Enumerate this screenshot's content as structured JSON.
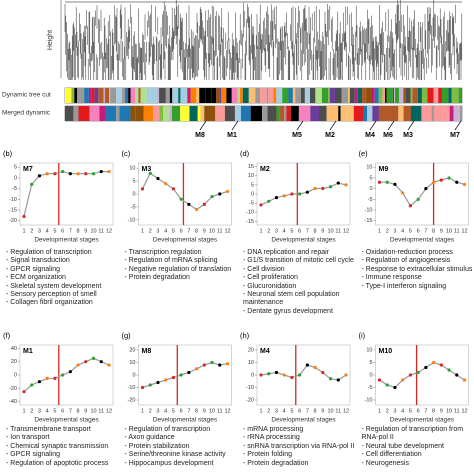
{
  "dendrogram": {
    "y_label": "Height",
    "rows": [
      "Dynamic tree cut",
      "Merged dynamic"
    ],
    "modules": [
      "M8",
      "M1",
      "M5",
      "M2",
      "M4",
      "M6",
      "M3",
      "M7"
    ]
  },
  "chart_data": [
    {
      "type": "line",
      "panel": "(b)",
      "title": "M7",
      "xlabel": "Developmental stages",
      "x": [
        1,
        2,
        3,
        4,
        5,
        6,
        7,
        8,
        9,
        10,
        11,
        12
      ],
      "values": [
        -18,
        -3,
        1,
        2,
        2,
        3,
        2,
        2,
        2,
        2,
        3,
        3
      ],
      "color": "#999999",
      "marker_x": 5.5,
      "ylim": [
        -22,
        7
      ],
      "yticks": [
        5,
        0,
        -5,
        -10,
        -15,
        -20
      ],
      "annotations": [
        "- Regulation of transcription",
        "- Signal transduction",
        "- GPCR signaling",
        "- ECM organization",
        "- Skeletal system development",
        "- Sensory perception of smell",
        "- Collagen fibril organization"
      ]
    },
    {
      "type": "line",
      "panel": "(c)",
      "title": "M3",
      "xlabel": "Developmental stages",
      "x": [
        1,
        2,
        3,
        4,
        5,
        6,
        7,
        8,
        9,
        10,
        11,
        12
      ],
      "values": [
        2,
        8,
        6,
        4,
        2,
        -2,
        -4,
        -6,
        -4,
        -1,
        0,
        1
      ],
      "color": "#999999",
      "marker_x": 6.3,
      "ylim": [
        -12,
        12
      ],
      "yticks": [
        10,
        5,
        0,
        -5,
        -10
      ],
      "annotations": [
        "- Transcription regulation",
        "- Regulation of mRNA splicing",
        "- Negative regulation of translation",
        "- Protein degradation"
      ]
    },
    {
      "type": "line",
      "panel": "(d)",
      "title": "M2",
      "xlabel": "Developmental stages",
      "x": [
        1,
        2,
        3,
        4,
        5,
        6,
        7,
        8,
        9,
        10,
        11,
        12
      ],
      "values": [
        -6,
        -4,
        -2,
        -1,
        0,
        0,
        1,
        3,
        3,
        4,
        6,
        5
      ],
      "color": "#999999",
      "marker_x": 5.7,
      "ylim": [
        -17,
        17
      ],
      "yticks": [
        15,
        10,
        5,
        0,
        -5,
        -10,
        -15
      ],
      "annotations": [
        "- DNA replication and repair",
        "- G1/S transition of mitotic cell cycle",
        "- Cell division",
        "- Cell proliferation",
        "- Glucuronidation",
        "- Neuronal stem cell population maintenance",
        "- Dentate gyrus development"
      ]
    },
    {
      "type": "line",
      "panel": "(e)",
      "title": "M9",
      "xlabel": "Developmental stages",
      "x": [
        1,
        2,
        3,
        4,
        5,
        6,
        7,
        8,
        9,
        10,
        11,
        12
      ],
      "values": [
        3,
        3,
        2,
        -2,
        -8,
        -5,
        0,
        3,
        4,
        5,
        3,
        2
      ],
      "color": "#999999",
      "marker_x": 8,
      "ylim": [
        -17,
        12
      ],
      "yticks": [
        10,
        5,
        0,
        -5,
        -10,
        -15
      ],
      "annotations": [
        "- Oxidation-reduction process",
        "- Regulation of angiogenesis",
        "- Response to extracellular stimulus",
        "- Immune response",
        "- Type-I interferon signaling"
      ]
    },
    {
      "type": "line",
      "panel": "(f)",
      "title": "M1",
      "xlabel": "Developmental stages",
      "x": [
        1,
        2,
        3,
        4,
        5,
        6,
        7,
        8,
        9,
        10,
        11,
        12
      ],
      "values": [
        -25,
        -15,
        -10,
        -5,
        -5,
        0,
        5,
        15,
        20,
        25,
        20,
        15
      ],
      "color": "#999999",
      "marker_x": 5.5,
      "ylim": [
        -45,
        45
      ],
      "yticks": [
        40,
        20,
        0,
        -20,
        -40
      ],
      "annotations": [
        "- Transmembrane transport",
        "- Ion transport",
        "- Chemical synaptic transmission",
        "- GPCR signaling",
        "- Regulation of apoptotic process"
      ]
    },
    {
      "type": "line",
      "panel": "(g)",
      "title": "M8",
      "xlabel": "Developmental stages",
      "x": [
        1,
        2,
        3,
        4,
        5,
        6,
        7,
        8,
        9,
        10,
        11,
        12
      ],
      "values": [
        -10,
        -8,
        -6,
        -4,
        -2,
        0,
        2,
        5,
        8,
        10,
        8,
        9
      ],
      "color": "#999999",
      "marker_x": 5.5,
      "ylim": [
        -24,
        24
      ],
      "yticks": [
        20,
        10,
        0,
        -10,
        -20
      ],
      "annotations": [
        "- Regulation of transcription",
        "- Axon guidance",
        "- Protein stabilization",
        "- Serine/threonine kinase activity",
        "- Hippocampus development"
      ]
    },
    {
      "type": "line",
      "panel": "(h)",
      "title": "M4",
      "xlabel": "Developmental stages",
      "x": [
        1,
        2,
        3,
        4,
        5,
        6,
        7,
        8,
        9,
        10,
        11,
        12
      ],
      "values": [
        0,
        1,
        2,
        0,
        -2,
        0,
        8,
        6,
        2,
        -3,
        -4,
        0
      ],
      "color": "#999999",
      "marker_x": 5.5,
      "ylim": [
        -24,
        24
      ],
      "yticks": [
        20,
        10,
        0,
        -10,
        -20
      ],
      "annotations": [
        "- mRNA processing",
        "- rRNA processing",
        "- snRNA transcription via RNA-pol II",
        "- Protein folding",
        "- Protein degradation"
      ]
    },
    {
      "type": "line",
      "panel": "(i)",
      "title": "M10",
      "xlabel": "Developmental stages",
      "x": [
        1,
        2,
        3,
        4,
        5,
        6,
        7,
        8,
        9,
        10,
        11,
        12
      ],
      "values": [
        -2,
        -4,
        -5,
        -2,
        0,
        1,
        3,
        5,
        4,
        2,
        0,
        -2
      ],
      "color": "#999999",
      "marker_x": 5.8,
      "ylim": [
        -12,
        12
      ],
      "yticks": [
        10,
        5,
        0,
        -5,
        -10
      ],
      "annotations": [
        "- Regulation of transcription from RNA-pol II",
        "- Neural tube development",
        "- Cell differentiation",
        "- Neurogenesis"
      ]
    }
  ]
}
